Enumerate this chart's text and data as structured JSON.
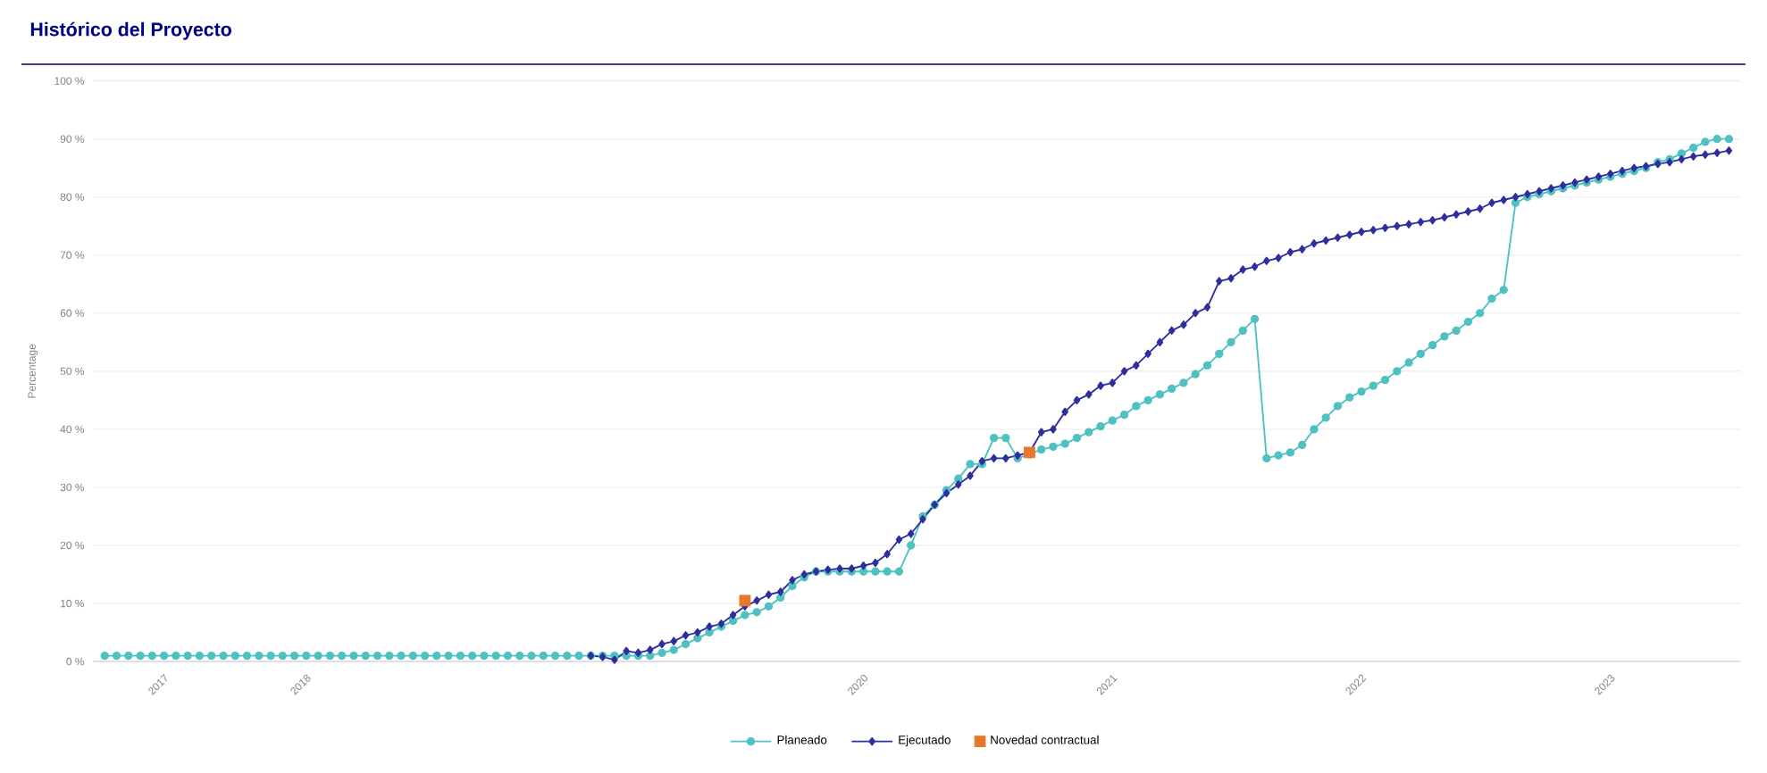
{
  "chart_data": {
    "type": "line",
    "title": "Histórico del Proyecto",
    "ylabel": "Percentage",
    "categories": [
      null,
      null,
      null,
      null,
      null,
      "2017",
      null,
      null,
      null,
      null,
      null,
      null,
      null,
      null,
      null,
      null,
      null,
      "2018",
      null,
      null,
      null,
      null,
      null,
      null,
      null,
      null,
      null,
      null,
      null,
      null,
      null,
      null,
      null,
      null,
      null,
      null,
      null,
      null,
      null,
      null,
      null,
      null,
      null,
      null,
      null,
      null,
      null,
      null,
      null,
      null,
      null,
      null,
      null,
      null,
      null,
      null,
      null,
      null,
      null,
      null,
      null,
      null,
      null,
      null,
      "2020",
      null,
      null,
      null,
      null,
      null,
      null,
      null,
      null,
      null,
      null,
      null,
      null,
      null,
      null,
      null,
      null,
      null,
      null,
      null,
      null,
      "2021",
      null,
      null,
      null,
      null,
      null,
      null,
      null,
      null,
      null,
      null,
      null,
      null,
      null,
      null,
      null,
      null,
      null,
      null,
      null,
      null,
      "2022",
      null,
      null,
      null,
      null,
      null,
      null,
      null,
      null,
      null,
      null,
      null,
      null,
      null,
      null,
      null,
      null,
      null,
      null,
      null,
      null,
      "2023",
      null,
      null,
      null,
      null,
      null,
      null,
      null,
      null,
      null,
      null
    ],
    "series": [
      {
        "name": "Planeado",
        "marker": "circle",
        "color": "#4fc1c0",
        "values": [
          1,
          1,
          1,
          1,
          1,
          1,
          1,
          1,
          1,
          1,
          1,
          1,
          1,
          1,
          1,
          1,
          1,
          1,
          1,
          1,
          1,
          1,
          1,
          1,
          1,
          1,
          1,
          1,
          1,
          1,
          1,
          1,
          1,
          1,
          1,
          1,
          1,
          1,
          1,
          1,
          1,
          1,
          1,
          1,
          1,
          1,
          1,
          1.5,
          2,
          3,
          4,
          5,
          6,
          7,
          8,
          8.5,
          9.5,
          11,
          13,
          14.5,
          15.5,
          15.5,
          15.5,
          15.5,
          15.5,
          15.5,
          15.5,
          15.5,
          20,
          25,
          27,
          29.5,
          31.5,
          34,
          34,
          38.5,
          38.5,
          35,
          35.7,
          36.5,
          37,
          37.5,
          38.5,
          39.5,
          40.5,
          41.5,
          42.5,
          44,
          45,
          46,
          47,
          48,
          49.5,
          51,
          53,
          55,
          57,
          59,
          35,
          35.5,
          36,
          37.3,
          40,
          42,
          44,
          45.5,
          46.5,
          47.5,
          48.5,
          50,
          51.5,
          53,
          54.5,
          56,
          57,
          58.5,
          60,
          62.5,
          64,
          79,
          80,
          80.5,
          81,
          81.5,
          82,
          82.5,
          83,
          83.5,
          84,
          84.5,
          85,
          86,
          86.5,
          87.5,
          88.5,
          89.5,
          90,
          90
        ]
      },
      {
        "name": "Ejecutado",
        "marker": "diamond",
        "color": "#2e2e9e",
        "values": [
          null,
          null,
          null,
          null,
          null,
          null,
          null,
          null,
          null,
          null,
          null,
          null,
          null,
          null,
          null,
          null,
          null,
          null,
          null,
          null,
          null,
          null,
          null,
          null,
          null,
          null,
          null,
          null,
          null,
          null,
          null,
          null,
          null,
          null,
          null,
          null,
          null,
          null,
          null,
          null,
          null,
          1,
          0.8,
          0.3,
          1.8,
          1.5,
          2,
          3,
          3.5,
          4.5,
          5,
          6,
          6.5,
          8,
          9.5,
          10.5,
          11.5,
          12,
          14,
          15,
          15.5,
          15.8,
          16,
          16,
          16.5,
          17,
          18.5,
          21,
          22,
          24.5,
          27,
          29,
          30.5,
          32,
          34.5,
          35,
          35,
          35.5,
          36,
          39.5,
          40,
          43,
          45,
          46,
          47.5,
          48,
          50,
          51,
          53,
          55,
          57,
          58,
          60,
          61,
          65.5,
          66,
          67.5,
          68,
          69,
          69.5,
          70.5,
          71,
          72,
          72.5,
          73,
          73.5,
          74,
          74.3,
          74.7,
          75,
          75.3,
          75.7,
          76,
          76.5,
          77,
          77.5,
          78,
          79,
          79.5,
          80,
          80.5,
          81,
          81.5,
          82,
          82.5,
          83,
          83.5,
          84,
          84.5,
          85,
          85.3,
          85.7,
          86,
          86.5,
          87,
          87.3,
          87.6,
          88
        ]
      },
      {
        "name": "Novedad contractual",
        "type": "scatter",
        "marker": "square",
        "color": "#e8772e",
        "values": [
          null,
          null,
          null,
          null,
          null,
          null,
          null,
          null,
          null,
          null,
          null,
          null,
          null,
          null,
          null,
          null,
          null,
          null,
          null,
          null,
          null,
          null,
          null,
          null,
          null,
          null,
          null,
          null,
          null,
          null,
          null,
          null,
          null,
          null,
          null,
          null,
          null,
          null,
          null,
          null,
          null,
          null,
          null,
          null,
          null,
          null,
          null,
          null,
          null,
          null,
          null,
          null,
          null,
          null,
          10.5,
          null,
          null,
          null,
          null,
          null,
          null,
          null,
          null,
          null,
          null,
          null,
          null,
          null,
          null,
          null,
          null,
          null,
          null,
          null,
          null,
          null,
          null,
          null,
          36,
          null,
          null,
          null,
          null,
          null,
          null,
          null,
          null,
          null,
          null,
          null,
          null,
          null,
          null,
          null,
          null,
          null,
          null,
          null,
          null,
          null,
          null,
          null,
          null,
          null,
          null,
          null,
          null,
          null,
          null,
          null,
          null,
          null,
          null,
          null,
          null,
          null,
          null,
          null,
          null,
          null,
          null,
          null,
          null,
          null,
          null,
          null,
          null,
          null,
          null,
          null,
          null,
          null,
          null,
          null,
          null,
          null,
          null,
          null
        ]
      }
    ],
    "ylim": [
      0,
      100
    ],
    "yticks": [
      {
        "value": 0,
        "label": "0 %"
      },
      {
        "value": 10,
        "label": "10 %"
      },
      {
        "value": 20,
        "label": "20 %"
      },
      {
        "value": 30,
        "label": "30 %"
      },
      {
        "value": 40,
        "label": "40 %"
      },
      {
        "value": 50,
        "label": "50 %"
      },
      {
        "value": 60,
        "label": "60 %"
      },
      {
        "value": 70,
        "label": "70 %"
      },
      {
        "value": 80,
        "label": "80 %"
      },
      {
        "value": 90,
        "label": "90 %"
      },
      {
        "value": 100,
        "label": "100 %"
      }
    ],
    "grid": "y",
    "legend": "bottom"
  }
}
